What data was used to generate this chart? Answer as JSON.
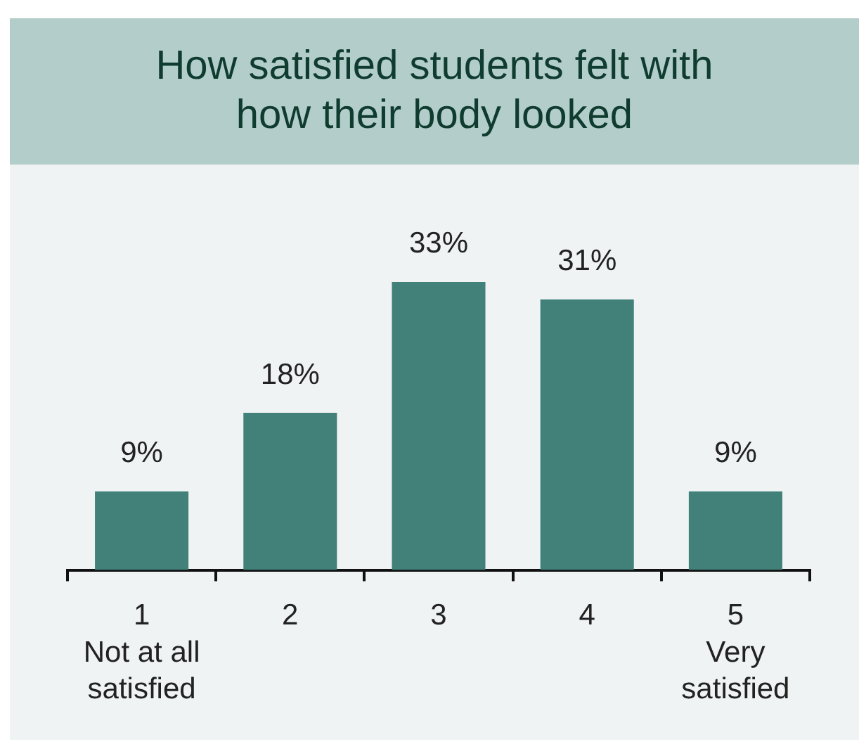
{
  "chart_data": {
    "type": "bar",
    "title": "How satisfied students felt with how their body looked",
    "categories": [
      "1\nNot at all\nsatisfied",
      "2",
      "3",
      "4",
      "5\nVery\nsatisfied"
    ],
    "values": [
      9,
      18,
      33,
      31,
      9
    ],
    "color": "#42807a",
    "value_labels": [
      "9%",
      "18%",
      "33%",
      "31%",
      "9%"
    ]
  }
}
